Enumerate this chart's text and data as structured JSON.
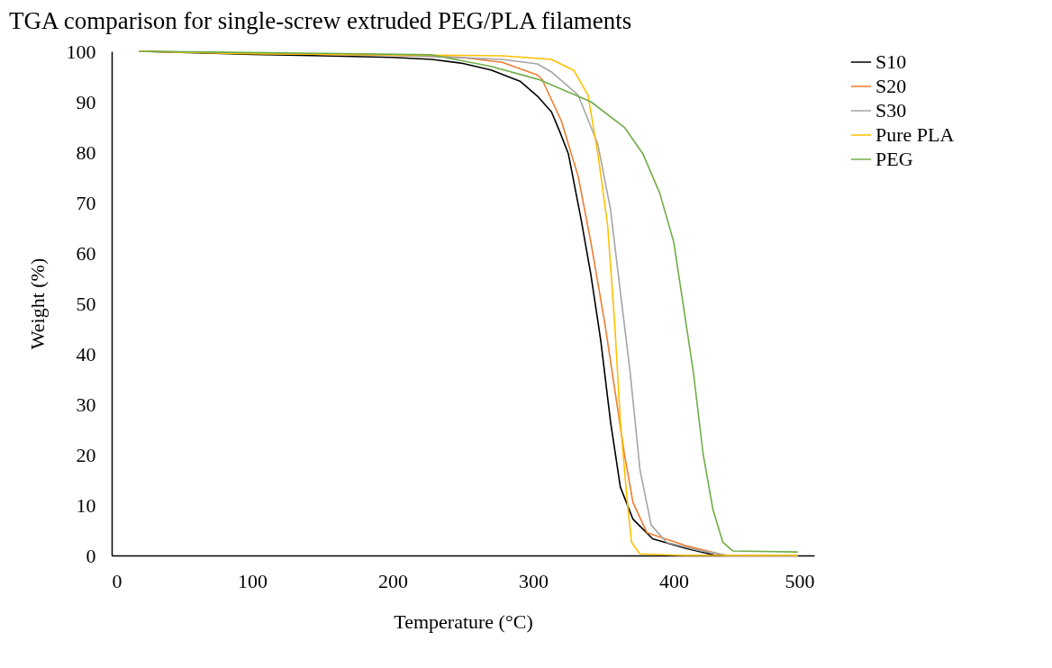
{
  "chart_data": {
    "type": "line",
    "title": "TGA comparison for single-screw extruded PEG/PLA filaments",
    "xlabel": "Temperature (°C)",
    "ylabel": "Weight (%)",
    "xlim": [
      0,
      500
    ],
    "xticks": [
      0,
      100,
      200,
      300,
      400,
      500
    ],
    "ylim": [
      0,
      100
    ],
    "yticks": [
      0,
      10,
      20,
      30,
      40,
      50,
      60,
      70,
      80,
      90,
      100
    ],
    "grid": false,
    "legend": "right",
    "marker": "none",
    "line_style": "solid",
    "series": [
      {
        "name": "S10",
        "color": "#000000",
        "x": [
          20,
          100,
          150,
          200,
          228,
          250,
          270,
          291,
          303,
          313,
          319,
          325,
          334,
          341,
          348,
          355,
          362,
          371,
          385,
          409,
          430,
          460,
          488
        ],
        "values": [
          100,
          99.4,
          99.1,
          98.8,
          98.4,
          97.6,
          96.3,
          94,
          91.1,
          88,
          84,
          79.7,
          66.8,
          55.8,
          42.8,
          26.6,
          13.6,
          7.2,
          3.3,
          1.4,
          0,
          0,
          0
        ]
      },
      {
        "name": "S20",
        "color": "#ed7d31",
        "x": [
          20,
          100,
          200,
          249,
          278,
          303,
          306,
          320,
          332,
          341,
          351,
          358,
          365,
          371,
          381,
          409,
          437,
          488
        ],
        "values": [
          100,
          99.6,
          99.2,
          98.8,
          97.8,
          95.3,
          94.6,
          86.2,
          75.2,
          62.2,
          46,
          33,
          20,
          10.5,
          4.5,
          1.9,
          0,
          0
        ]
      },
      {
        "name": "S30",
        "color": "#a5a5a5",
        "x": [
          20,
          100,
          200,
          278,
          303,
          313,
          332,
          346,
          355,
          362,
          369,
          376,
          384,
          395,
          418,
          439,
          488
        ],
        "values": [
          100,
          99.6,
          99.3,
          98.4,
          97.5,
          95.9,
          91.3,
          81.6,
          68.7,
          52.4,
          36.3,
          17,
          6,
          2.6,
          1,
          0,
          0
        ]
      },
      {
        "name": "Pure PLA",
        "color": "#ffc000",
        "x": [
          20,
          100,
          250,
          278,
          313,
          329,
          339,
          346,
          353,
          358,
          362,
          367,
          370,
          376,
          407,
          488
        ],
        "values": [
          100,
          99.5,
          99.2,
          99.1,
          98.4,
          96.2,
          91.3,
          79.7,
          65.4,
          46,
          26.6,
          10.5,
          2.6,
          0.3,
          0,
          0
        ]
      },
      {
        "name": "PEG",
        "color": "#70ad47",
        "x": [
          20,
          150,
          228,
          270,
          304,
          341,
          365,
          378,
          390,
          400,
          407,
          414,
          421,
          428,
          435,
          442,
          488
        ],
        "values": [
          100,
          99.6,
          99.3,
          97,
          94.4,
          90,
          84.9,
          79.7,
          71.9,
          62.2,
          49.3,
          36.3,
          20,
          9,
          2.6,
          0.9,
          0.7
        ]
      }
    ]
  }
}
